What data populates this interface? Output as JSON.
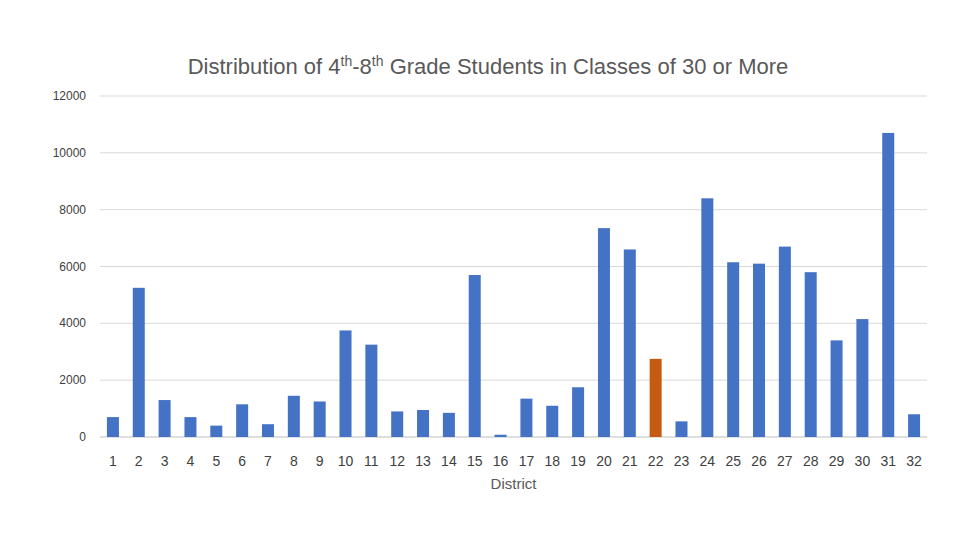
{
  "chart_data": {
    "type": "bar",
    "title": "Distribution of 4th-8th Grade Students in Classes of 30 or More",
    "x_label": "District",
    "categories": [
      "1",
      "2",
      "3",
      "4",
      "5",
      "6",
      "7",
      "8",
      "9",
      "10",
      "11",
      "12",
      "13",
      "14",
      "15",
      "16",
      "17",
      "18",
      "19",
      "20",
      "21",
      "22",
      "23",
      "24",
      "25",
      "26",
      "27",
      "28",
      "29",
      "30",
      "31",
      "32"
    ],
    "values": [
      700,
      5250,
      1300,
      700,
      400,
      1150,
      450,
      1450,
      1250,
      3750,
      3250,
      900,
      950,
      850,
      5700,
      80,
      1350,
      1100,
      1750,
      7350,
      6600,
      2750,
      550,
      8400,
      6150,
      6100,
      6700,
      5800,
      3400,
      4150,
      10700,
      800
    ],
    "colors": [
      "#4472c4",
      "#4472c4",
      "#4472c4",
      "#4472c4",
      "#4472c4",
      "#4472c4",
      "#4472c4",
      "#4472c4",
      "#4472c4",
      "#4472c4",
      "#4472c4",
      "#4472c4",
      "#4472c4",
      "#4472c4",
      "#4472c4",
      "#4472c4",
      "#4472c4",
      "#4472c4",
      "#4472c4",
      "#4472c4",
      "#4472c4",
      "#c55a11",
      "#4472c4",
      "#4472c4",
      "#4472c4",
      "#4472c4",
      "#4472c4",
      "#4472c4",
      "#4472c4",
      "#4472c4",
      "#4472c4",
      "#4472c4"
    ],
    "ylim": [
      0,
      12000
    ],
    "yticks": [
      0,
      2000,
      4000,
      6000,
      8000,
      10000,
      12000
    ],
    "grid": true
  }
}
